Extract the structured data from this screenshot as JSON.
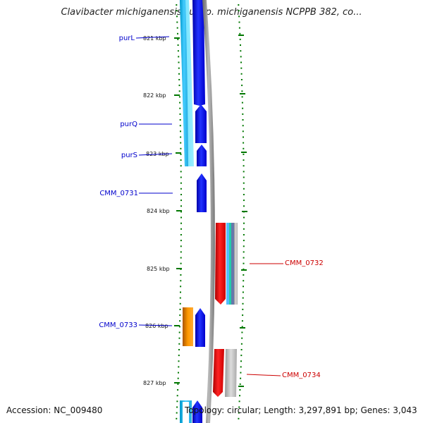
{
  "title": "Clavibacter michiganensis subsp. michiganensis NCPPB 382, co...",
  "footer": {
    "accession": "Accession: NC_009480",
    "summary": "Topology: circular; Length: 3,297,891 bp; Genes: 3,043"
  },
  "scale_labels": [
    "821 kbp",
    "822 kbp",
    "823 kbp",
    "824 kbp",
    "825 kbp",
    "826 kbp",
    "827 kbp"
  ],
  "gene_labels": [
    {
      "text": "purL",
      "side": "left",
      "color": "#0000cc"
    },
    {
      "text": "purQ",
      "side": "left",
      "color": "#0000cc"
    },
    {
      "text": "purS",
      "side": "left",
      "color": "#0000cc"
    },
    {
      "text": "CMM_0731",
      "side": "left",
      "color": "#0000cc"
    },
    {
      "text": "CMM_0733",
      "side": "left",
      "color": "#0000cc"
    },
    {
      "text": "CMM_0732",
      "side": "right",
      "color": "#cc0000"
    },
    {
      "text": "CMM_0734",
      "side": "right",
      "color": "#cc0000"
    }
  ],
  "colors": {
    "forward_strand": "#0000ee",
    "reverse_strand": "#ee0000",
    "backbone": "#888888",
    "ticks": "#007700",
    "cyan_feature": "#33ccff",
    "orange_feature": "#ff9900",
    "gray_feature": "#bbbbbb"
  }
}
